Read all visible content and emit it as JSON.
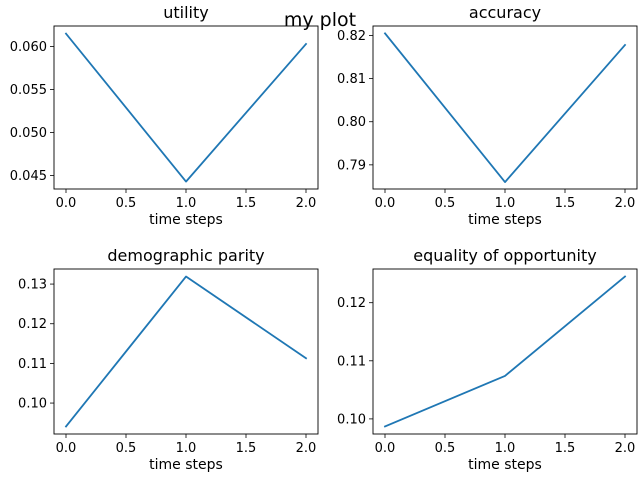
{
  "figure": {
    "suptitle": "my plot"
  },
  "chart_data": [
    {
      "type": "line",
      "title": "utility",
      "xlabel": "time steps",
      "ylabel": "",
      "x": [
        0,
        1,
        2
      ],
      "series": [
        {
          "values": [
            0.0615,
            0.0443,
            0.0603
          ],
          "color": "#1f77b4"
        }
      ],
      "xlim": [
        -0.1,
        2.1
      ],
      "ylim": [
        0.04344,
        0.06239
      ],
      "xticks": [
        0,
        0.5,
        1,
        1.5,
        2
      ],
      "xtick_labels": [
        "0.0",
        "0.5",
        "1.0",
        "1.5",
        "2.0"
      ],
      "yticks": [
        0.045,
        0.05,
        0.055,
        0.06
      ],
      "ytick_labels": [
        "0.045",
        "0.050",
        "0.055",
        "0.060"
      ],
      "grid": false
    },
    {
      "type": "line",
      "title": "accuracy",
      "xlabel": "time steps",
      "ylabel": "",
      "x": [
        0,
        1,
        2
      ],
      "series": [
        {
          "values": [
            0.8205,
            0.786,
            0.8178
          ],
          "color": "#1f77b4"
        }
      ],
      "xlim": [
        -0.1,
        2.1
      ],
      "ylim": [
        0.7844,
        0.8222
      ],
      "xticks": [
        0,
        0.5,
        1,
        1.5,
        2
      ],
      "xtick_labels": [
        "0.0",
        "0.5",
        "1.0",
        "1.5",
        "2.0"
      ],
      "yticks": [
        0.79,
        0.8,
        0.81,
        0.82
      ],
      "ytick_labels": [
        "0.79",
        "0.80",
        "0.81",
        "0.82"
      ],
      "grid": false
    },
    {
      "type": "line",
      "title": "demographic parity",
      "xlabel": "time steps",
      "ylabel": "",
      "x": [
        0,
        1,
        2
      ],
      "series": [
        {
          "values": [
            0.0941,
            0.1319,
            0.1113
          ],
          "color": "#1f77b4"
        }
      ],
      "xlim": [
        -0.1,
        2.1
      ],
      "ylim": [
        0.0922,
        0.1338
      ],
      "xticks": [
        0,
        0.5,
        1,
        1.5,
        2
      ],
      "xtick_labels": [
        "0.0",
        "0.5",
        "1.0",
        "1.5",
        "2.0"
      ],
      "yticks": [
        0.1,
        0.11,
        0.12,
        0.13
      ],
      "ytick_labels": [
        "0.10",
        "0.11",
        "0.12",
        "0.13"
      ],
      "grid": false
    },
    {
      "type": "line",
      "title": "equality of opportunity",
      "xlabel": "time steps",
      "ylabel": "",
      "x": [
        0,
        1,
        2
      ],
      "series": [
        {
          "values": [
            0.0987,
            0.1074,
            0.1245
          ],
          "color": "#1f77b4"
        }
      ],
      "xlim": [
        -0.1,
        2.1
      ],
      "ylim": [
        0.0974,
        0.1258
      ],
      "xticks": [
        0,
        0.5,
        1,
        1.5,
        2
      ],
      "xtick_labels": [
        "0.0",
        "0.5",
        "1.0",
        "1.5",
        "2.0"
      ],
      "yticks": [
        0.1,
        0.11,
        0.12
      ],
      "ytick_labels": [
        "0.10",
        "0.11",
        "0.12"
      ],
      "grid": false
    }
  ]
}
